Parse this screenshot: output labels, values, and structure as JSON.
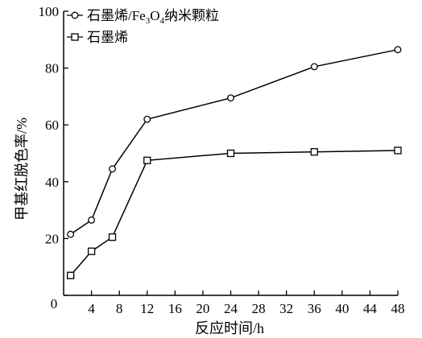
{
  "chart_data": {
    "type": "line",
    "xlabel": "反应时间/h",
    "ylabel": "甲基红脱色率/%",
    "xlim": [
      0,
      48
    ],
    "ylim": [
      0,
      100
    ],
    "x_ticks": [
      4,
      8,
      12,
      16,
      20,
      24,
      28,
      32,
      36,
      40,
      44,
      48
    ],
    "x_tick_labels": [
      "4",
      "8",
      "12",
      "16",
      "20",
      "24",
      "28",
      "32",
      "36",
      "40",
      "44",
      "48"
    ],
    "y_ticks": [
      0,
      20,
      40,
      60,
      80,
      100
    ],
    "y_tick_labels": [
      "0",
      "20",
      "40",
      "60",
      "80",
      "100"
    ],
    "grid": false,
    "legend_position": "top-left",
    "series": [
      {
        "name": "石墨烯/Fe3O4纳米颗粒",
        "legend_main": "石墨烯/Fe",
        "legend_sub1": "3",
        "legend_mid": "O",
        "legend_sub2": "4",
        "legend_tail": "纳米颗粒",
        "marker": "circle",
        "color": "#000000",
        "x": [
          1,
          4,
          7,
          12,
          24,
          36,
          48
        ],
        "y": [
          21.5,
          26.5,
          44.5,
          62,
          69.5,
          80.5,
          86.5
        ]
      },
      {
        "name": "石墨烯",
        "marker": "square",
        "color": "#000000",
        "x": [
          1,
          4,
          7,
          12,
          24,
          36,
          48
        ],
        "y": [
          7,
          15.5,
          20.5,
          47.5,
          50,
          50.5,
          51
        ]
      }
    ]
  }
}
